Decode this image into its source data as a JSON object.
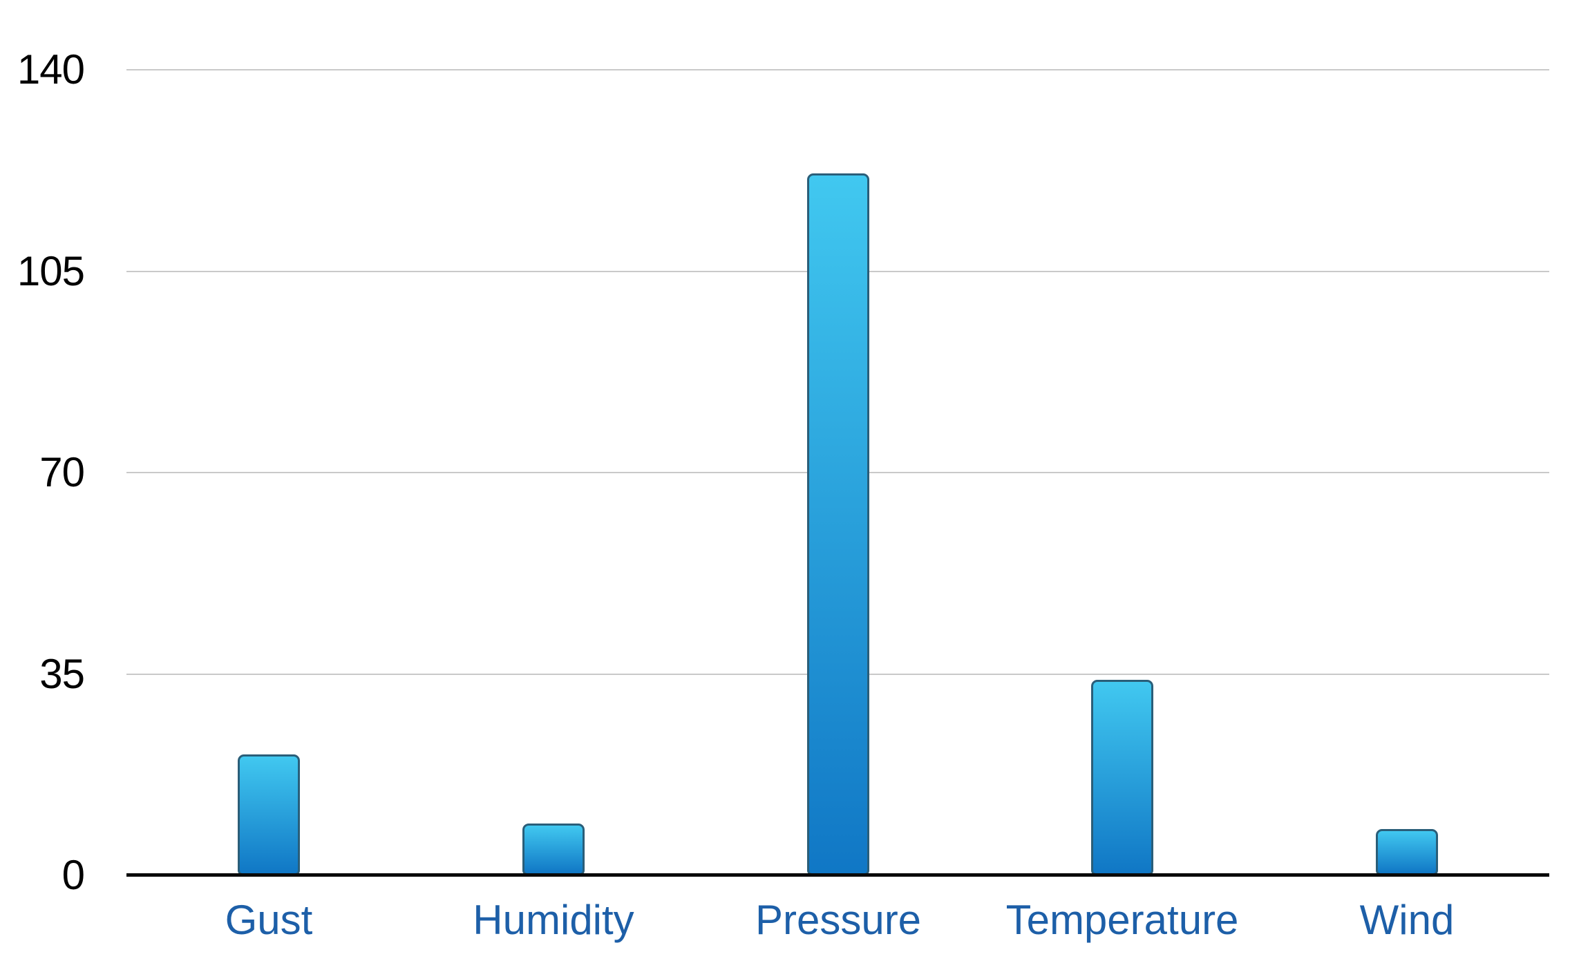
{
  "chart_data": {
    "type": "bar",
    "title": "",
    "xlabel": "",
    "ylabel": "",
    "categories": [
      "Gust",
      "Humidity",
      "Pressure",
      "Temperature",
      "Wind"
    ],
    "values": [
      21,
      9,
      122,
      34,
      8
    ],
    "y_ticks": [
      0,
      35,
      70,
      105,
      140
    ],
    "ylim": [
      0,
      140
    ],
    "grid": "horizontal gridlines on",
    "legend": "none",
    "colors": {
      "bar_gradient_top": "#41C8F0",
      "bar_gradient_bottom": "#1077C5",
      "bar_border": "#2A5E79",
      "gridline": "#C9C9C9",
      "axis_line": "#0A0A0A",
      "x_label": "#1D5FA8",
      "y_label": "#000000",
      "background": "#FFFFFF"
    }
  }
}
